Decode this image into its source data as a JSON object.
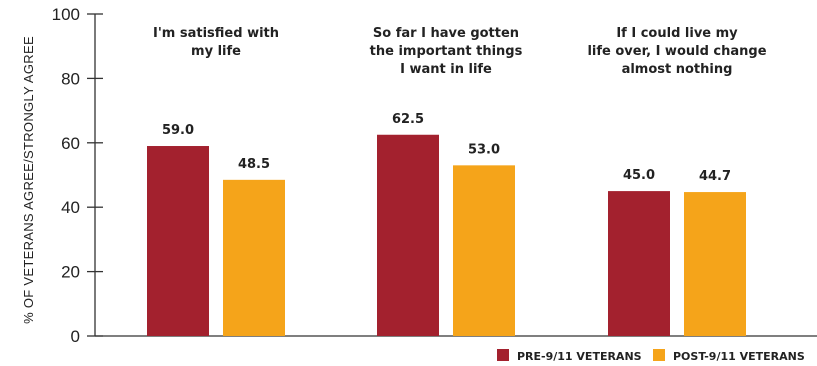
{
  "chart_data": {
    "type": "bar",
    "ylabel": "% OF VETERANS AGREE/STRONGLY AGREE",
    "ylim": [
      0,
      100
    ],
    "yticks": [
      0,
      20,
      40,
      60,
      80,
      100
    ],
    "categories": [
      [
        "I'm satisfied with",
        "my life"
      ],
      [
        "So far I have gotten",
        "the important things",
        "I want in life"
      ],
      [
        "If I could live my",
        "life over, I would change",
        "almost nothing"
      ]
    ],
    "series": [
      {
        "name": "PRE-9/11 VETERANS",
        "color": "#a3212e",
        "values": [
          59.0,
          62.5,
          45.0
        ]
      },
      {
        "name": "POST-9/11 VETERANS",
        "color": "#f5a41a",
        "values": [
          48.5,
          53.0,
          44.7
        ]
      }
    ],
    "legend_position": "bottom-right",
    "grid": false
  }
}
